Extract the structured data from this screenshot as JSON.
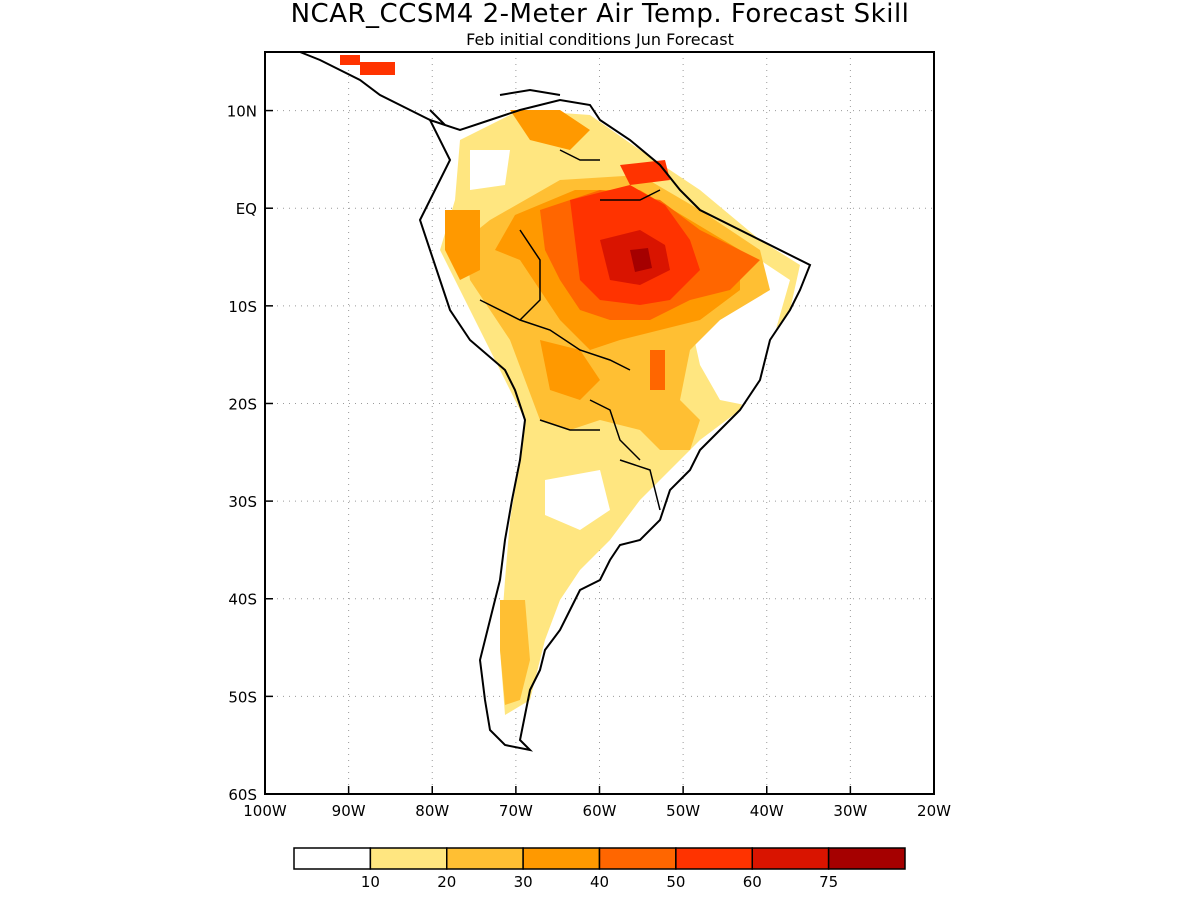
{
  "title": "NCAR_CCSM4 2-Meter Air Temp. Forecast Skill",
  "subtitle": "Feb initial conditions  Jun Forecast",
  "axes": {
    "x_ticks": [
      "100W",
      "90W",
      "80W",
      "70W",
      "60W",
      "50W",
      "40W",
      "30W",
      "20W"
    ],
    "y_ticks": [
      "10N",
      "EQ",
      "10S",
      "20S",
      "30S",
      "40S",
      "50S",
      "60S"
    ]
  },
  "map": {
    "lon_range": [
      -100,
      -20
    ],
    "lat_range": [
      -60,
      16
    ],
    "grid": "dotted",
    "region": "South America"
  },
  "legend": {
    "labels": [
      "10",
      "20",
      "30",
      "40",
      "50",
      "60",
      "75"
    ],
    "colors": [
      "#ffffff",
      "#ffe680",
      "#ffbf33",
      "#ff9900",
      "#ff6600",
      "#ff3300",
      "#d91400",
      "#a50000"
    ]
  }
}
